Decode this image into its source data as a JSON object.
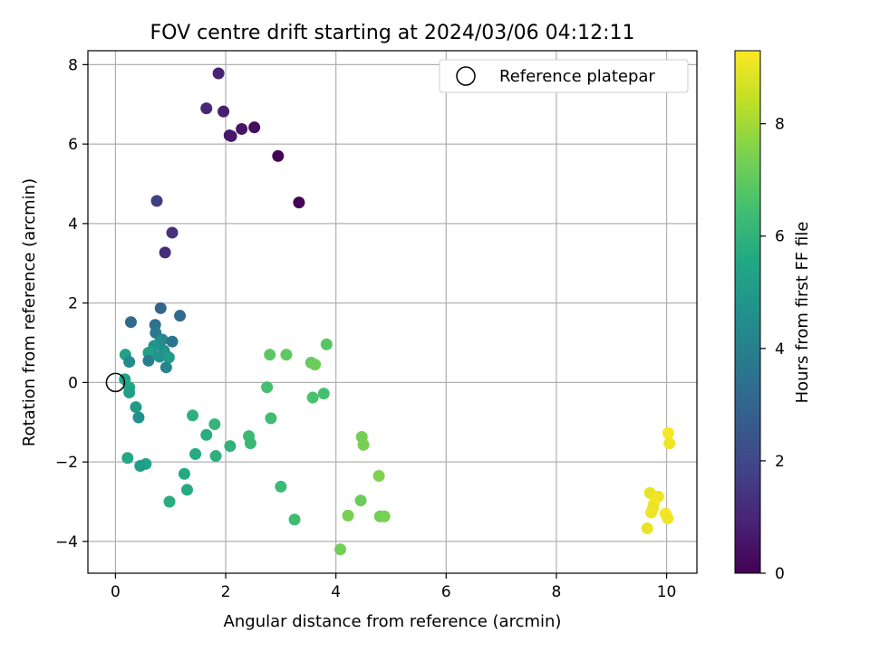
{
  "chart_data": {
    "type": "scatter",
    "title": "FOV centre drift starting at 2024/03/06 04:12:11",
    "xlabel": "Angular distance from reference (arcmin)",
    "ylabel": "Rotation from reference (arcmin)",
    "xlim": [
      -0.5,
      10.55
    ],
    "ylim": [
      -4.8,
      8.35
    ],
    "xticks": [
      0,
      2,
      4,
      6,
      8,
      10
    ],
    "yticks": [
      -4,
      -2,
      0,
      2,
      4,
      6,
      8
    ],
    "grid": true,
    "legend": {
      "position": "top-right",
      "entries": [
        {
          "label": "Reference platepar",
          "marker": "hollow-circle"
        }
      ]
    },
    "reference_point": {
      "x": 0,
      "y": 0
    },
    "colorbar": {
      "label": "Hours from first FF file",
      "colormap": "viridis",
      "range": [
        0,
        9.3
      ],
      "ticks": [
        0,
        2,
        4,
        6,
        8
      ]
    },
    "points": [
      {
        "x": 1.87,
        "y": 7.78,
        "c": 0.9
      },
      {
        "x": 1.65,
        "y": 6.9,
        "c": 1.0
      },
      {
        "x": 1.96,
        "y": 6.82,
        "c": 0.8
      },
      {
        "x": 2.52,
        "y": 6.42,
        "c": 0.3
      },
      {
        "x": 2.29,
        "y": 6.38,
        "c": 0.5
      },
      {
        "x": 2.1,
        "y": 6.2,
        "c": 0.6
      },
      {
        "x": 2.07,
        "y": 6.22,
        "c": 0.6
      },
      {
        "x": 2.95,
        "y": 5.7,
        "c": 0.1
      },
      {
        "x": 3.33,
        "y": 4.53,
        "c": 0.05
      },
      {
        "x": 0.75,
        "y": 4.57,
        "c": 1.7
      },
      {
        "x": 1.03,
        "y": 3.77,
        "c": 1.3
      },
      {
        "x": 0.9,
        "y": 3.27,
        "c": 1.2
      },
      {
        "x": 0.82,
        "y": 1.87,
        "c": 3.0
      },
      {
        "x": 1.17,
        "y": 1.68,
        "c": 3.3
      },
      {
        "x": 0.28,
        "y": 1.52,
        "c": 3.2
      },
      {
        "x": 0.72,
        "y": 1.45,
        "c": 3.5
      },
      {
        "x": 0.73,
        "y": 1.25,
        "c": 3.8
      },
      {
        "x": 0.85,
        "y": 1.08,
        "c": 4.3
      },
      {
        "x": 1.03,
        "y": 1.03,
        "c": 3.6
      },
      {
        "x": 0.8,
        "y": 1.0,
        "c": 4.5
      },
      {
        "x": 0.7,
        "y": 0.92,
        "c": 4.8
      },
      {
        "x": 0.88,
        "y": 0.8,
        "c": 4.6
      },
      {
        "x": 0.65,
        "y": 0.77,
        "c": 5.0
      },
      {
        "x": 0.6,
        "y": 0.75,
        "c": 5.2
      },
      {
        "x": 0.18,
        "y": 0.7,
        "c": 5.3
      },
      {
        "x": 0.9,
        "y": 0.72,
        "c": 4.9
      },
      {
        "x": 0.8,
        "y": 0.65,
        "c": 4.7
      },
      {
        "x": 0.97,
        "y": 0.63,
        "c": 5.1
      },
      {
        "x": 0.6,
        "y": 0.55,
        "c": 3.9
      },
      {
        "x": 0.25,
        "y": 0.52,
        "c": 4.4
      },
      {
        "x": 0.92,
        "y": 0.38,
        "c": 4.2
      },
      {
        "x": 0.17,
        "y": 0.08,
        "c": 5.4
      },
      {
        "x": 0.25,
        "y": -0.12,
        "c": 5.5
      },
      {
        "x": 0.25,
        "y": -0.25,
        "c": 5.2
      },
      {
        "x": 0.37,
        "y": -0.62,
        "c": 5.0
      },
      {
        "x": 0.42,
        "y": -0.88,
        "c": 4.6
      },
      {
        "x": 0.22,
        "y": -1.9,
        "c": 5.6
      },
      {
        "x": 0.55,
        "y": -2.05,
        "c": 5.5
      },
      {
        "x": 0.45,
        "y": -2.1,
        "c": 5.1
      },
      {
        "x": 1.4,
        "y": -0.83,
        "c": 5.9
      },
      {
        "x": 1.8,
        "y": -1.05,
        "c": 6.1
      },
      {
        "x": 1.65,
        "y": -1.32,
        "c": 5.8
      },
      {
        "x": 1.45,
        "y": -1.8,
        "c": 5.7
      },
      {
        "x": 1.82,
        "y": -1.85,
        "c": 5.9
      },
      {
        "x": 2.08,
        "y": -1.6,
        "c": 6.0
      },
      {
        "x": 1.25,
        "y": -2.3,
        "c": 5.6
      },
      {
        "x": 1.3,
        "y": -2.7,
        "c": 5.7
      },
      {
        "x": 0.98,
        "y": -3.0,
        "c": 5.8
      },
      {
        "x": 2.42,
        "y": -1.35,
        "c": 6.3
      },
      {
        "x": 2.45,
        "y": -1.53,
        "c": 6.2
      },
      {
        "x": 2.75,
        "y": -0.12,
        "c": 6.5
      },
      {
        "x": 2.82,
        "y": -0.9,
        "c": 6.4
      },
      {
        "x": 2.8,
        "y": 0.7,
        "c": 6.9
      },
      {
        "x": 3.1,
        "y": 0.7,
        "c": 7.0
      },
      {
        "x": 3.0,
        "y": -2.62,
        "c": 6.3
      },
      {
        "x": 3.25,
        "y": -3.45,
        "c": 6.4
      },
      {
        "x": 3.55,
        "y": 0.5,
        "c": 7.1
      },
      {
        "x": 3.62,
        "y": 0.45,
        "c": 7.2
      },
      {
        "x": 3.83,
        "y": 0.96,
        "c": 6.8
      },
      {
        "x": 3.58,
        "y": -0.38,
        "c": 6.6
      },
      {
        "x": 3.78,
        "y": -0.28,
        "c": 6.5
      },
      {
        "x": 4.08,
        "y": -4.2,
        "c": 7.3
      },
      {
        "x": 4.22,
        "y": -3.35,
        "c": 7.4
      },
      {
        "x": 4.47,
        "y": -1.37,
        "c": 7.3
      },
      {
        "x": 4.5,
        "y": -1.57,
        "c": 7.4
      },
      {
        "x": 4.45,
        "y": -2.97,
        "c": 7.2
      },
      {
        "x": 4.78,
        "y": -2.35,
        "c": 7.5
      },
      {
        "x": 4.8,
        "y": -3.37,
        "c": 7.3
      },
      {
        "x": 4.88,
        "y": -3.37,
        "c": 7.4
      },
      {
        "x": 10.03,
        "y": -1.27,
        "c": 9.2
      },
      {
        "x": 10.05,
        "y": -1.53,
        "c": 9.1
      },
      {
        "x": 9.7,
        "y": -2.78,
        "c": 9.0
      },
      {
        "x": 9.85,
        "y": -2.87,
        "c": 9.1
      },
      {
        "x": 9.77,
        "y": -3.05,
        "c": 9.2
      },
      {
        "x": 9.75,
        "y": -3.17,
        "c": 9.0
      },
      {
        "x": 9.72,
        "y": -3.27,
        "c": 9.1
      },
      {
        "x": 9.98,
        "y": -3.3,
        "c": 9.2
      },
      {
        "x": 10.02,
        "y": -3.42,
        "c": 9.1
      },
      {
        "x": 9.65,
        "y": -3.67,
        "c": 9.0
      }
    ]
  }
}
